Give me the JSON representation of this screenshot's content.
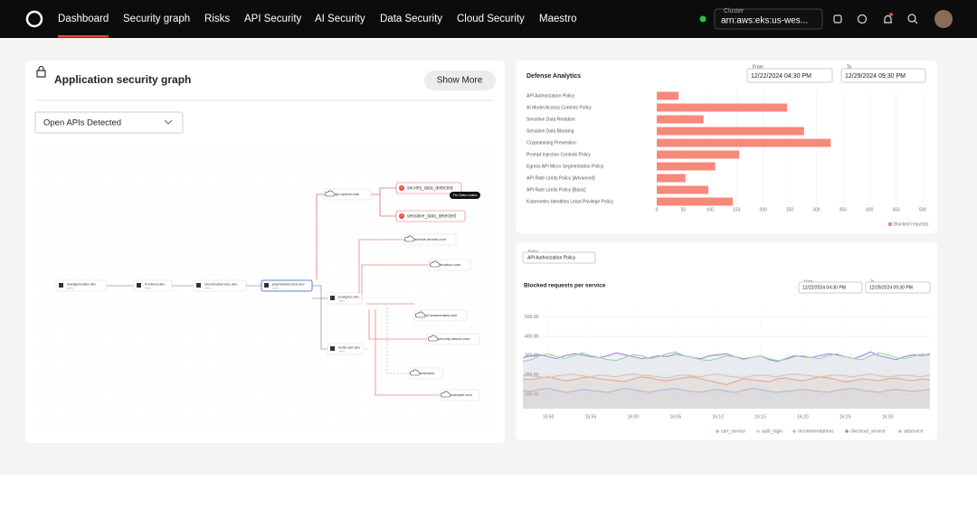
{
  "page": {
    "nav": {
      "items": [
        "Dashboard",
        "Security graph",
        "Risks",
        "API Security",
        "AI Security",
        "Data Security",
        "Cloud Security",
        "Maestro"
      ],
      "cluster_label": "Cluster",
      "cluster_value": "arn:aws:eks:us-wes..."
    },
    "graph": {
      "title": "Application security graph",
      "button": "Show More",
      "filter": "Open APIs Detected",
      "badge": "Fix Data Leaks",
      "nodes": [
        {
          "label": "loadgenerator.dev",
          "sub": "(dev)"
        },
        {
          "label": "frontend.dev",
          "sub": "(dev)"
        },
        {
          "label": "checkoutservice.dev",
          "sub": "(dev)"
        },
        {
          "label": "paymentservice.dev",
          "sub": "(dev)"
        },
        {
          "label": "postgres.dev",
          "sub": "(dev)"
        },
        {
          "label": "redis-cart.dev",
          "sub": "(dev)"
        },
        {
          "label": "api.openai.com"
        },
        {
          "label": "secrets_data_detected"
        },
        {
          "label": "sensitive_data_detected"
        },
        {
          "label": "archive.ubuntu.com"
        },
        {
          "label": "dropbox.com"
        },
        {
          "label": "s3.amazonaws.com"
        },
        {
          "label": "security.ubuntu.com"
        },
        {
          "label": "unknown"
        },
        {
          "label": "example.com"
        }
      ]
    }
  },
  "chart_data": [
    {
      "type": "bar",
      "orientation": "horizontal",
      "title": "Defense Analytics",
      "from_label": "From",
      "from_value": "12/22/2024 04:30 PM",
      "to_label": "To",
      "to_value": "12/29/2024 09:30 PM",
      "categories": [
        "API Authorization Policy",
        "AI Model Access Controls Policy",
        "Sensitive Data Redation",
        "Sensitive Data Blocking",
        "Cryptomining Prevention",
        "Prompt Injection Controls Policy",
        "Egress API Micro Segmentation Policy",
        "API Rate Limits Policy [Advanced]",
        "API Rate Limits Policy [Basic]",
        "Kubernetes Identities Least Privilege Policy"
      ],
      "series": [
        {
          "name": "Blocked requests",
          "color": "#f7897b",
          "values": [
            41,
            245,
            88,
            277,
            327,
            155,
            110,
            54,
            97,
            143
          ]
        }
      ],
      "xlim": [
        0,
        500
      ],
      "xticks": [
        0,
        50,
        100,
        150,
        200,
        250,
        300,
        350,
        400,
        450,
        500
      ],
      "grid": true,
      "legend": "bottom-right"
    },
    {
      "type": "line",
      "title": "Blocked requests per service",
      "policy_label": "Policy",
      "policy_value": "API Authorization Policy",
      "from_label": "From",
      "from_value": "12/22/2024 04:30 PM",
      "to_label": "To",
      "to_value": "12/29/2024 09:30 PM",
      "area": true,
      "grid": true,
      "legend": "bottom",
      "x": [
        "15:47",
        "15:48",
        "15:49",
        "15:50",
        "15:51",
        "15:52",
        "15:53",
        "15:54",
        "15:55",
        "15:56",
        "15:57",
        "15:58",
        "15:59",
        "16:00",
        "16:01",
        "16:02",
        "16:03",
        "16:04",
        "16:05",
        "16:06",
        "16:07",
        "16:08",
        "16:09",
        "16:10",
        "16:11",
        "16:12",
        "16:13",
        "16:14",
        "16:15",
        "16:16",
        "16:17",
        "16:18",
        "16:19",
        "16:20",
        "16:21",
        "16:22",
        "16:23",
        "16:24",
        "16:25",
        "16:26",
        "16:27",
        "16:28",
        "16:29",
        "16:30",
        "16:31",
        "16:32",
        "16:33",
        "16:34",
        "16:35"
      ],
      "xticks": [
        "15:50",
        "15:55",
        "16:00",
        "16:05",
        "16:10",
        "16:15",
        "16:20",
        "16:25",
        "16:30"
      ],
      "ylim": [
        25,
        560
      ],
      "yticks": [
        {
          "value": 100,
          "label": "100.00"
        },
        {
          "value": 200,
          "label": "200.00"
        },
        {
          "value": 300,
          "label": "300.00"
        },
        {
          "value": 400,
          "label": "400.00"
        },
        {
          "value": 500,
          "label": "500.00"
        }
      ],
      "series": [
        {
          "name": "cart_service",
          "color": "#f2a57e",
          "values": [
            180,
            175,
            185,
            190,
            180,
            170,
            175,
            185,
            190,
            180,
            175,
            170,
            165,
            180,
            190,
            185,
            175,
            170,
            180,
            185,
            190,
            180,
            170,
            160,
            150,
            165,
            180,
            175,
            170,
            165,
            180,
            185,
            175,
            170,
            180,
            190,
            185,
            175,
            165,
            170,
            180,
            175,
            170,
            180,
            185,
            175,
            170,
            180,
            175
          ]
        },
        {
          "name": "auth_login",
          "color": "#f7c8a8",
          "values": [
            200,
            195,
            190,
            185,
            195,
            200,
            205,
            195,
            190,
            200,
            195,
            190,
            200,
            205,
            200,
            195,
            190,
            185,
            195,
            200,
            195,
            190,
            200,
            205,
            195,
            190,
            185,
            195,
            200,
            195,
            190,
            200,
            205,
            200,
            195,
            190,
            195,
            200,
            195,
            190,
            200,
            205,
            195,
            190,
            195,
            200,
            195,
            190,
            200
          ]
        },
        {
          "name": "recommendations",
          "color": "#a9c4e6",
          "values": [
            120,
            115,
            125,
            130,
            120,
            110,
            115,
            125,
            120,
            115,
            110,
            120,
            130,
            125,
            115,
            110,
            120,
            125,
            130,
            120,
            115,
            110,
            120,
            125,
            115,
            110,
            120,
            130,
            125,
            115,
            110,
            115,
            120,
            125,
            120,
            115,
            110,
            120,
            125,
            130,
            120,
            115,
            110,
            120,
            125,
            120,
            115,
            120,
            125
          ]
        },
        {
          "name": "checkout_service",
          "color": "#9d86e6",
          "values": [
            290,
            300,
            305,
            295,
            285,
            300,
            310,
            305,
            295,
            290,
            300,
            315,
            305,
            295,
            285,
            290,
            300,
            295,
            310,
            300,
            290,
            285,
            300,
            305,
            310,
            295,
            285,
            290,
            300,
            280,
            270,
            285,
            300,
            295,
            290,
            300,
            310,
            305,
            295,
            285,
            300,
            320,
            300,
            290,
            280,
            295,
            305,
            300,
            310
          ]
        },
        {
          "name": "adservice",
          "color": "#9ad7a6",
          "values": [
            270,
            280,
            300,
            310,
            295,
            285,
            300,
            315,
            300,
            290,
            280,
            275,
            290,
            305,
            300,
            285,
            295,
            310,
            320,
            300,
            290,
            280,
            275,
            285,
            300,
            295,
            280,
            290,
            300,
            285,
            275,
            280,
            295,
            300,
            290,
            285,
            300,
            310,
            295,
            285,
            280,
            300,
            315,
            305,
            290,
            285,
            295,
            310,
            300
          ]
        }
      ]
    }
  ]
}
